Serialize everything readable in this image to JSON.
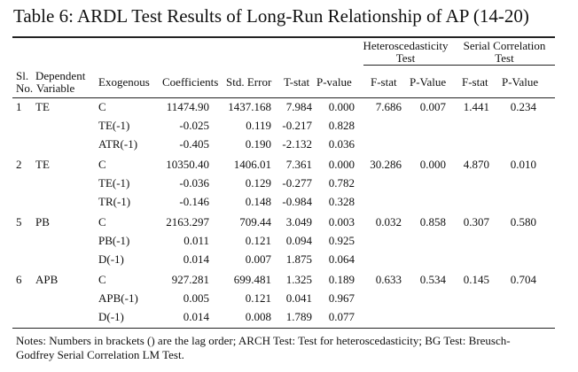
{
  "title": "Table 6: ARDL Test Results of Long-Run Relationship of AP (14-20)",
  "group_headers": {
    "hetero_line1": "Heteroscedasticity",
    "hetero_line2": "Test",
    "serial_line1": "Serial Correlation",
    "serial_line2": "Test"
  },
  "columns": {
    "sl": "Sl.",
    "no": "No.",
    "dependent": "Dependent",
    "variable": "Variable",
    "exogenous": "Exogenous",
    "coefficients": "Coefficients",
    "std_error": "Std. Error",
    "t_stat": "T-stat",
    "p_value": "P-value",
    "f_stat": "F-stat",
    "p_value2": "P-Value",
    "f_stat2": "F-stat",
    "p_value3": "P-Value"
  },
  "groups": [
    {
      "no": "1",
      "dep": "TE",
      "hf": "7.686",
      "hp": "0.007",
      "sf": "1.441",
      "sp": "0.234",
      "rows": [
        {
          "exo": "C",
          "coef": "11474.90",
          "se": "1437.168",
          "t": "7.984",
          "p": "0.000"
        },
        {
          "exo": "TE(-1)",
          "coef": "-0.025",
          "se": "0.119",
          "t": "-0.217",
          "p": "0.828"
        },
        {
          "exo": "ATR(-1)",
          "coef": "-0.405",
          "se": "0.190",
          "t": "-2.132",
          "p": "0.036"
        }
      ]
    },
    {
      "no": "2",
      "dep": "TE",
      "hf": "30.286",
      "hp": "0.000",
      "sf": "4.870",
      "sp": "0.010",
      "rows": [
        {
          "exo": "C",
          "coef": "10350.40",
          "se": "1406.01",
          "t": "7.361",
          "p": "0.000"
        },
        {
          "exo": "TE(-1)",
          "coef": "-0.036",
          "se": "0.129",
          "t": "-0.277",
          "p": "0.782"
        },
        {
          "exo": "TR(-1)",
          "coef": "-0.146",
          "se": "0.148",
          "t": "-0.984",
          "p": "0.328"
        }
      ]
    },
    {
      "no": "5",
      "dep": "PB",
      "hf": "0.032",
      "hp": "0.858",
      "sf": "0.307",
      "sp": "0.580",
      "rows": [
        {
          "exo": "C",
          "coef": "2163.297",
          "se": "709.44",
          "t": "3.049",
          "p": "0.003"
        },
        {
          "exo": "PB(-1)",
          "coef": "0.011",
          "se": "0.121",
          "t": "0.094",
          "p": "0.925"
        },
        {
          "exo": "D(-1)",
          "coef": "0.014",
          "se": "0.007",
          "t": "1.875",
          "p": "0.064"
        }
      ]
    },
    {
      "no": "6",
      "dep": "APB",
      "hf": "0.633",
      "hp": "0.534",
      "sf": "0.145",
      "sp": "0.704",
      "rows": [
        {
          "exo": "C",
          "coef": "927.281",
          "se": "699.481",
          "t": "1.325",
          "p": "0.189"
        },
        {
          "exo": "APB(-1)",
          "coef": "0.005",
          "se": "0.121",
          "t": "0.041",
          "p": "0.967"
        },
        {
          "exo": "D(-1)",
          "coef": "0.014",
          "se": "0.008",
          "t": "1.789",
          "p": "0.077"
        }
      ]
    }
  ],
  "notes": "Notes: Numbers in brackets () are the lag order; ARCH Test: Test for heteroscedasticity; BG Test: Breusch-Godfrey Serial Correlation LM Test."
}
